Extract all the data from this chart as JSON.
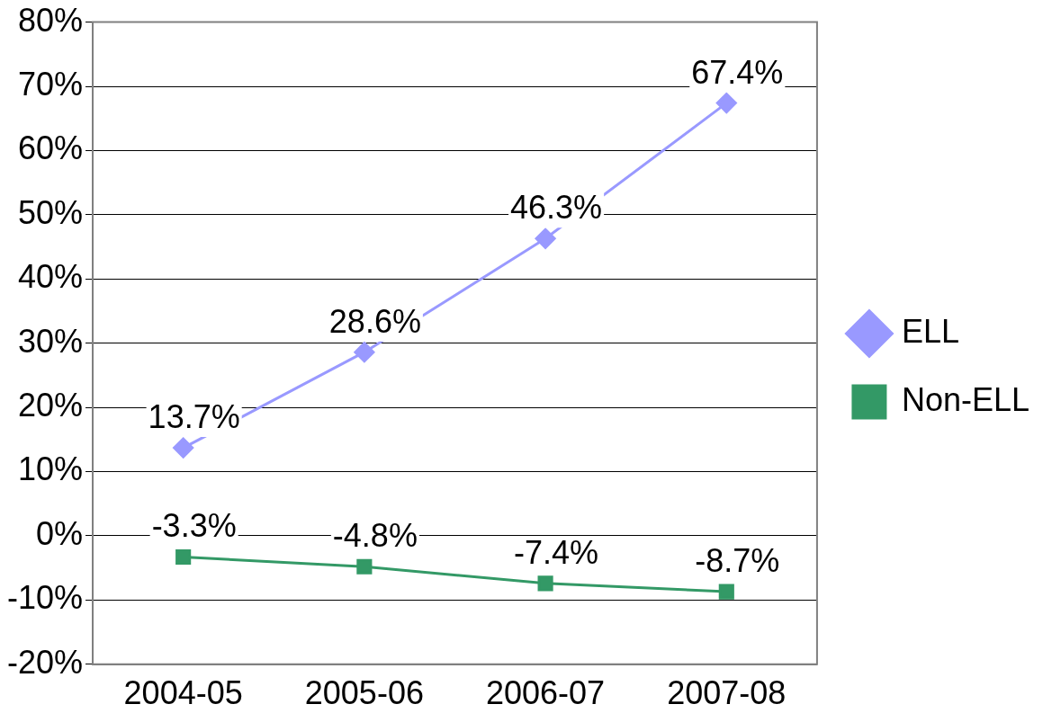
{
  "chart_data": {
    "type": "line",
    "categories": [
      "2004-05",
      "2005-06",
      "2006-07",
      "2007-08"
    ],
    "series": [
      {
        "name": "ELL",
        "color": "#9999ff",
        "marker": "diamond",
        "values": [
          13.7,
          28.6,
          46.3,
          67.4
        ],
        "value_labels": [
          "13.7%",
          "28.6%",
          "46.3%",
          "67.4%"
        ]
      },
      {
        "name": "Non-ELL",
        "color": "#339966",
        "marker": "square",
        "values": [
          -3.3,
          -4.8,
          -7.4,
          -8.7
        ],
        "value_labels": [
          "-3.3%",
          "-4.8%",
          "-7.4%",
          "-8.7%"
        ]
      }
    ],
    "ylim": [
      -20,
      80
    ],
    "yticks": [
      {
        "value": -20,
        "label": "-20%"
      },
      {
        "value": -10,
        "label": "-10%"
      },
      {
        "value": 0,
        "label": "0%"
      },
      {
        "value": 10,
        "label": "10%"
      },
      {
        "value": 20,
        "label": "20%"
      },
      {
        "value": 30,
        "label": "30%"
      },
      {
        "value": 40,
        "label": "40%"
      },
      {
        "value": 50,
        "label": "50%"
      },
      {
        "value": 60,
        "label": "60%"
      },
      {
        "value": 70,
        "label": "70%"
      },
      {
        "value": 80,
        "label": "80%"
      }
    ],
    "grid": "y",
    "legend": "right",
    "line_style": "solid"
  }
}
